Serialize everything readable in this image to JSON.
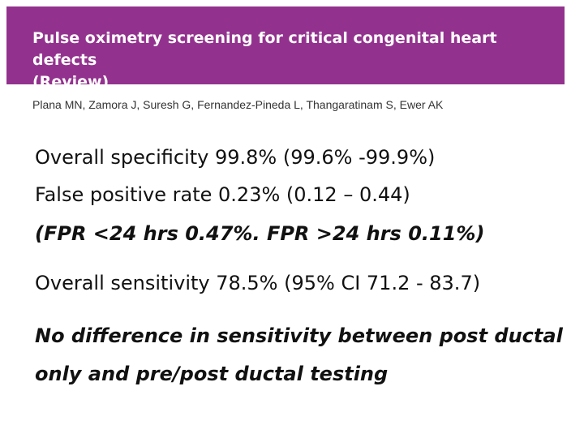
{
  "header": {
    "title_line1": "Pulse oximetry screening for critical congenital heart defects",
    "title_line2": "(Review)",
    "banner_color": "#93328e"
  },
  "authors": "Plana MN, Zamora J, Suresh G, Fernandez-Pineda L, Thangaratinam S, Ewer AK",
  "body": {
    "specificity": "Overall specificity 99.8% (99.6% -99.9%)",
    "false_positive_rate": "False positive rate 0.23% (0.12 – 0.44)",
    "fpr_breakdown": "(FPR <24 hrs 0.47%. FPR >24 hrs 0.11%)",
    "sensitivity": "Overall sensitivity 78.5% (95% CI 71.2 - 83.7)",
    "conclusion_line1": "No difference in sensitivity between post ductal",
    "conclusion_line2": "only and pre/post ductal testing"
  }
}
